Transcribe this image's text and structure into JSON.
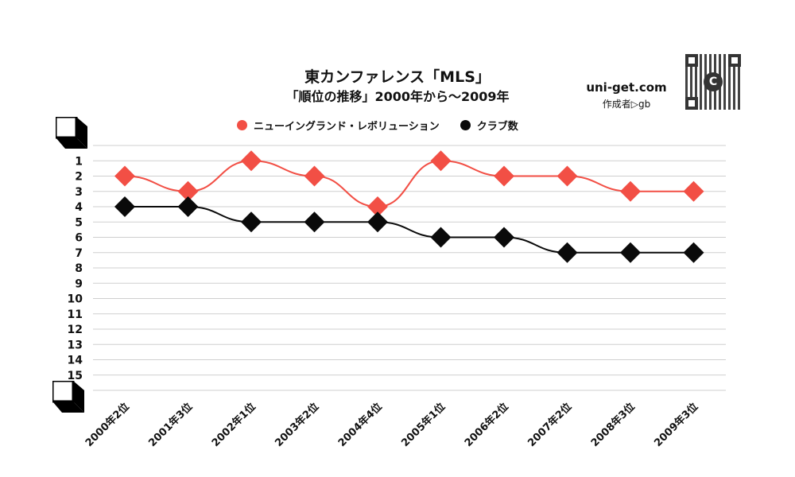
{
  "header": {
    "title": "東カンファレンス「MLS」",
    "subtitle": "「順位の推移」2000年から～2009年",
    "site": "uni-get.com",
    "author": "作成者▷gb"
  },
  "colors": {
    "series_red": "#f24f45",
    "series_black": "#0a0a0a",
    "grid": "#cfcfcf"
  },
  "chart_data": {
    "type": "line",
    "categories": [
      "2000年2位",
      "2001年3位",
      "2002年1位",
      "2003年2位",
      "2004年4位",
      "2005年1位",
      "2006年2位",
      "2007年2位",
      "2008年3位",
      "2009年3位"
    ],
    "y_ticks": [
      "1",
      "2",
      "3",
      "4",
      "5",
      "6",
      "7",
      "8",
      "9",
      "10",
      "11",
      "12",
      "13",
      "14",
      "15"
    ],
    "ylim": [
      0,
      16
    ],
    "y_inverted": true,
    "grid": true,
    "legend_position": "top",
    "series": [
      {
        "name": "ニューイングランド・レボリューション",
        "values": [
          2,
          3,
          1,
          2,
          4,
          1,
          2,
          2,
          3,
          3
        ],
        "color": "#f24f45"
      },
      {
        "name": "クラブ数",
        "values": [
          4,
          4,
          5,
          5,
          5,
          6,
          6,
          7,
          7,
          7
        ],
        "color": "#0a0a0a"
      }
    ]
  }
}
